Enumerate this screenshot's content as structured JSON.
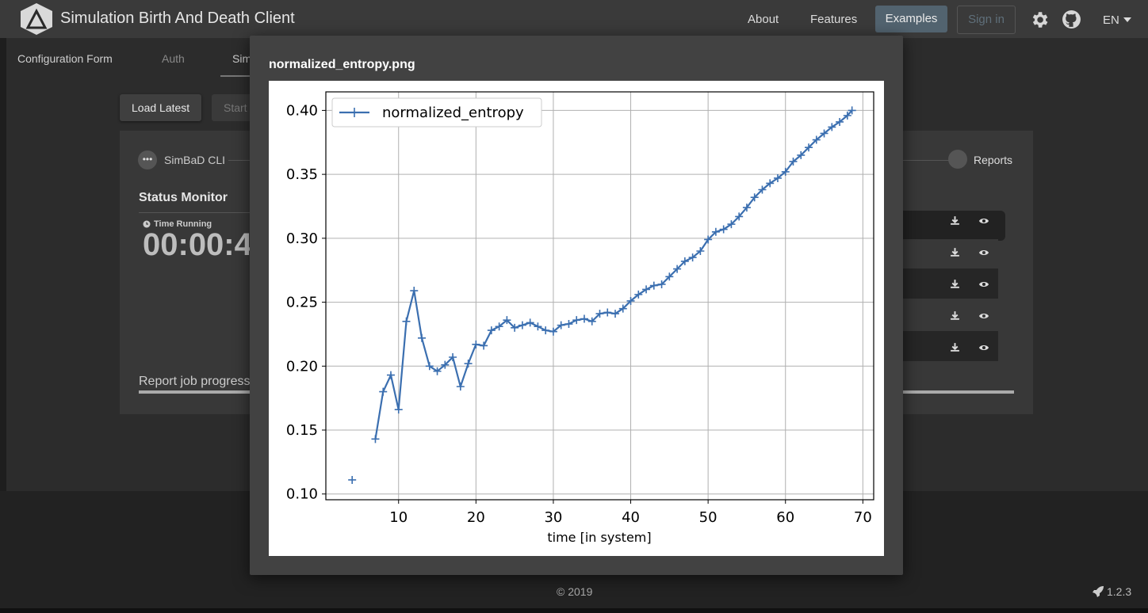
{
  "app": {
    "title": "Simulation Birth And Death Client"
  },
  "nav": {
    "about": "About",
    "features": "Features",
    "examples": "Examples",
    "signin": "Sign in",
    "language": "EN"
  },
  "subnav": {
    "config": "Configuration Form",
    "auth": "Auth",
    "sim": "Sim"
  },
  "actions": {
    "load_latest": "Load Latest",
    "start": "Start"
  },
  "steps": {
    "cli": "SimBaD CLI",
    "reports": "Reports"
  },
  "status": {
    "title": "Status Monitor",
    "time_label": "Time Running",
    "time_value": "00:00:4",
    "report_progress": "Report job progress"
  },
  "footer": {
    "copyright": "© 2019",
    "version": "1.2.3"
  },
  "modal": {
    "title": "normalized_entropy.png"
  },
  "icons": {
    "settings": "gear-icon",
    "github": "github-icon",
    "download": "download-icon",
    "view": "eye-icon",
    "clock": "clock-icon",
    "rocket": "rocket-icon",
    "more": "more-icon"
  },
  "chart_data": {
    "type": "line",
    "title": "",
    "xlabel": "time [in system]",
    "ylabel": "",
    "xlim": [
      0.6,
      71.4
    ],
    "ylim": [
      0.0955,
      0.4145
    ],
    "xticks": [
      10,
      20,
      30,
      40,
      50,
      60,
      70
    ],
    "yticks": [
      0.1,
      0.15,
      0.2,
      0.25,
      0.3,
      0.35,
      0.4
    ],
    "yticklabels": [
      "0.10",
      "0.15",
      "0.20",
      "0.25",
      "0.30",
      "0.35",
      "0.40"
    ],
    "grid": true,
    "legend": "top-left",
    "color": "#3b6fb0",
    "series": [
      {
        "name": "normalized_entropy",
        "x": [
          4,
          7,
          8,
          9,
          10,
          11,
          12,
          13,
          14,
          15,
          16,
          17,
          18,
          19,
          20,
          21,
          22,
          23,
          24,
          25,
          26,
          27,
          28,
          29,
          30,
          31,
          32,
          33,
          34,
          35,
          36,
          37,
          38,
          39,
          40,
          41,
          42,
          43,
          44,
          45,
          46,
          47,
          48,
          49,
          50,
          51,
          52,
          53,
          54,
          55,
          56,
          57,
          58,
          59,
          60,
          61,
          62,
          63,
          64,
          65,
          66,
          67,
          68,
          68.6
        ],
        "y": [
          0.111,
          0.143,
          0.18,
          0.193,
          0.166,
          0.235,
          0.259,
          0.222,
          0.2,
          0.196,
          0.201,
          0.207,
          0.184,
          0.202,
          0.217,
          0.216,
          0.228,
          0.231,
          0.236,
          0.23,
          0.232,
          0.234,
          0.231,
          0.228,
          0.227,
          0.232,
          0.233,
          0.236,
          0.237,
          0.235,
          0.241,
          0.242,
          0.241,
          0.245,
          0.251,
          0.256,
          0.26,
          0.263,
          0.264,
          0.27,
          0.276,
          0.282,
          0.285,
          0.29,
          0.299,
          0.305,
          0.307,
          0.311,
          0.317,
          0.324,
          0.332,
          0.338,
          0.343,
          0.347,
          0.352,
          0.36,
          0.365,
          0.371,
          0.377,
          0.382,
          0.387,
          0.391,
          0.396,
          0.4
        ],
        "connect_from_index": 1
      }
    ]
  }
}
